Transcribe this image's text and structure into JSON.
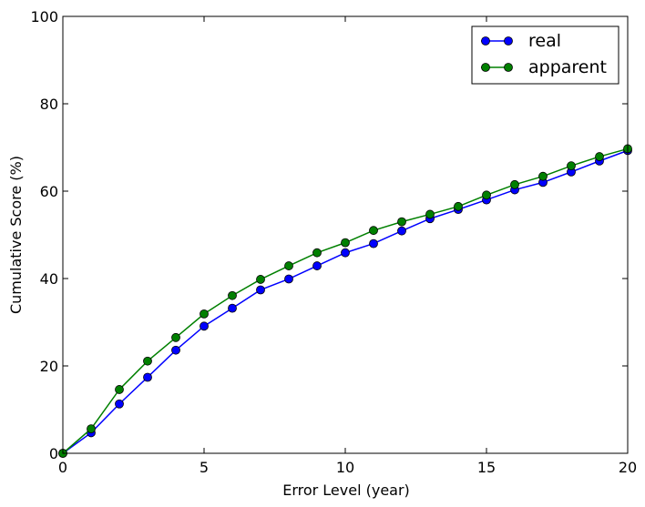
{
  "chart_data": {
    "type": "line",
    "title": "",
    "xlabel": "Error Level (year)",
    "ylabel": "Cumulative Score (%)",
    "xlim": [
      0,
      20
    ],
    "ylim": [
      0,
      100
    ],
    "xticks": [
      0,
      5,
      10,
      15,
      20
    ],
    "yticks": [
      0,
      20,
      40,
      60,
      80,
      100
    ],
    "grid": false,
    "legend_position": "top-right",
    "x": [
      0,
      1,
      2,
      3,
      4,
      5,
      6,
      7,
      8,
      9,
      10,
      11,
      12,
      13,
      14,
      15,
      16,
      17,
      18,
      19,
      20
    ],
    "series": [
      {
        "name": "real",
        "color": "#0000ff",
        "values": [
          0,
          4.7,
          11.3,
          17.4,
          23.6,
          29.1,
          33.2,
          37.4,
          39.9,
          42.9,
          45.9,
          48.0,
          50.9,
          53.7,
          55.8,
          58.0,
          60.3,
          62.0,
          64.4,
          66.9,
          69.3
        ]
      },
      {
        "name": "apparent",
        "color": "#008000",
        "values": [
          0,
          5.6,
          14.6,
          21.1,
          26.5,
          31.9,
          36.1,
          39.8,
          42.9,
          45.9,
          48.2,
          51.0,
          53.0,
          54.7,
          56.5,
          59.1,
          61.5,
          63.4,
          65.8,
          67.9,
          69.7
        ]
      }
    ]
  }
}
